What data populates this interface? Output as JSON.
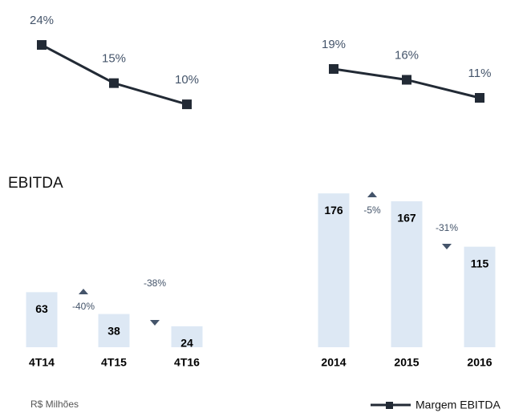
{
  "title": "EBITDA",
  "note": "R$ Milhões",
  "chart_data": [
    {
      "type": "bar_line",
      "categories": [
        "4T14",
        "4T15",
        "4T16"
      ],
      "values": [
        63,
        38,
        24
      ],
      "color": "#dde8f4",
      "line": {
        "name": "Margem EBITDA",
        "values": [
          24,
          15,
          10
        ],
        "value_labels": [
          "24%",
          "15%",
          "10%"
        ],
        "color": "#222a35"
      },
      "changes": [
        -40,
        -38
      ],
      "change_labels": [
        "-40%",
        "-38%"
      ],
      "change_color": "#44546a"
    },
    {
      "type": "bar_line",
      "categories": [
        "2014",
        "2015",
        "2016"
      ],
      "values": [
        176,
        167,
        115
      ],
      "color": "#dde8f4",
      "line": {
        "values": [
          19,
          16,
          11
        ],
        "value_labels": [
          "19%",
          "16%",
          "11%"
        ],
        "color": "#222a35"
      },
      "changes": [
        -5,
        -31
      ],
      "change_labels": [
        "-5%",
        "-31%"
      ],
      "change_color": "#44546a"
    }
  ]
}
